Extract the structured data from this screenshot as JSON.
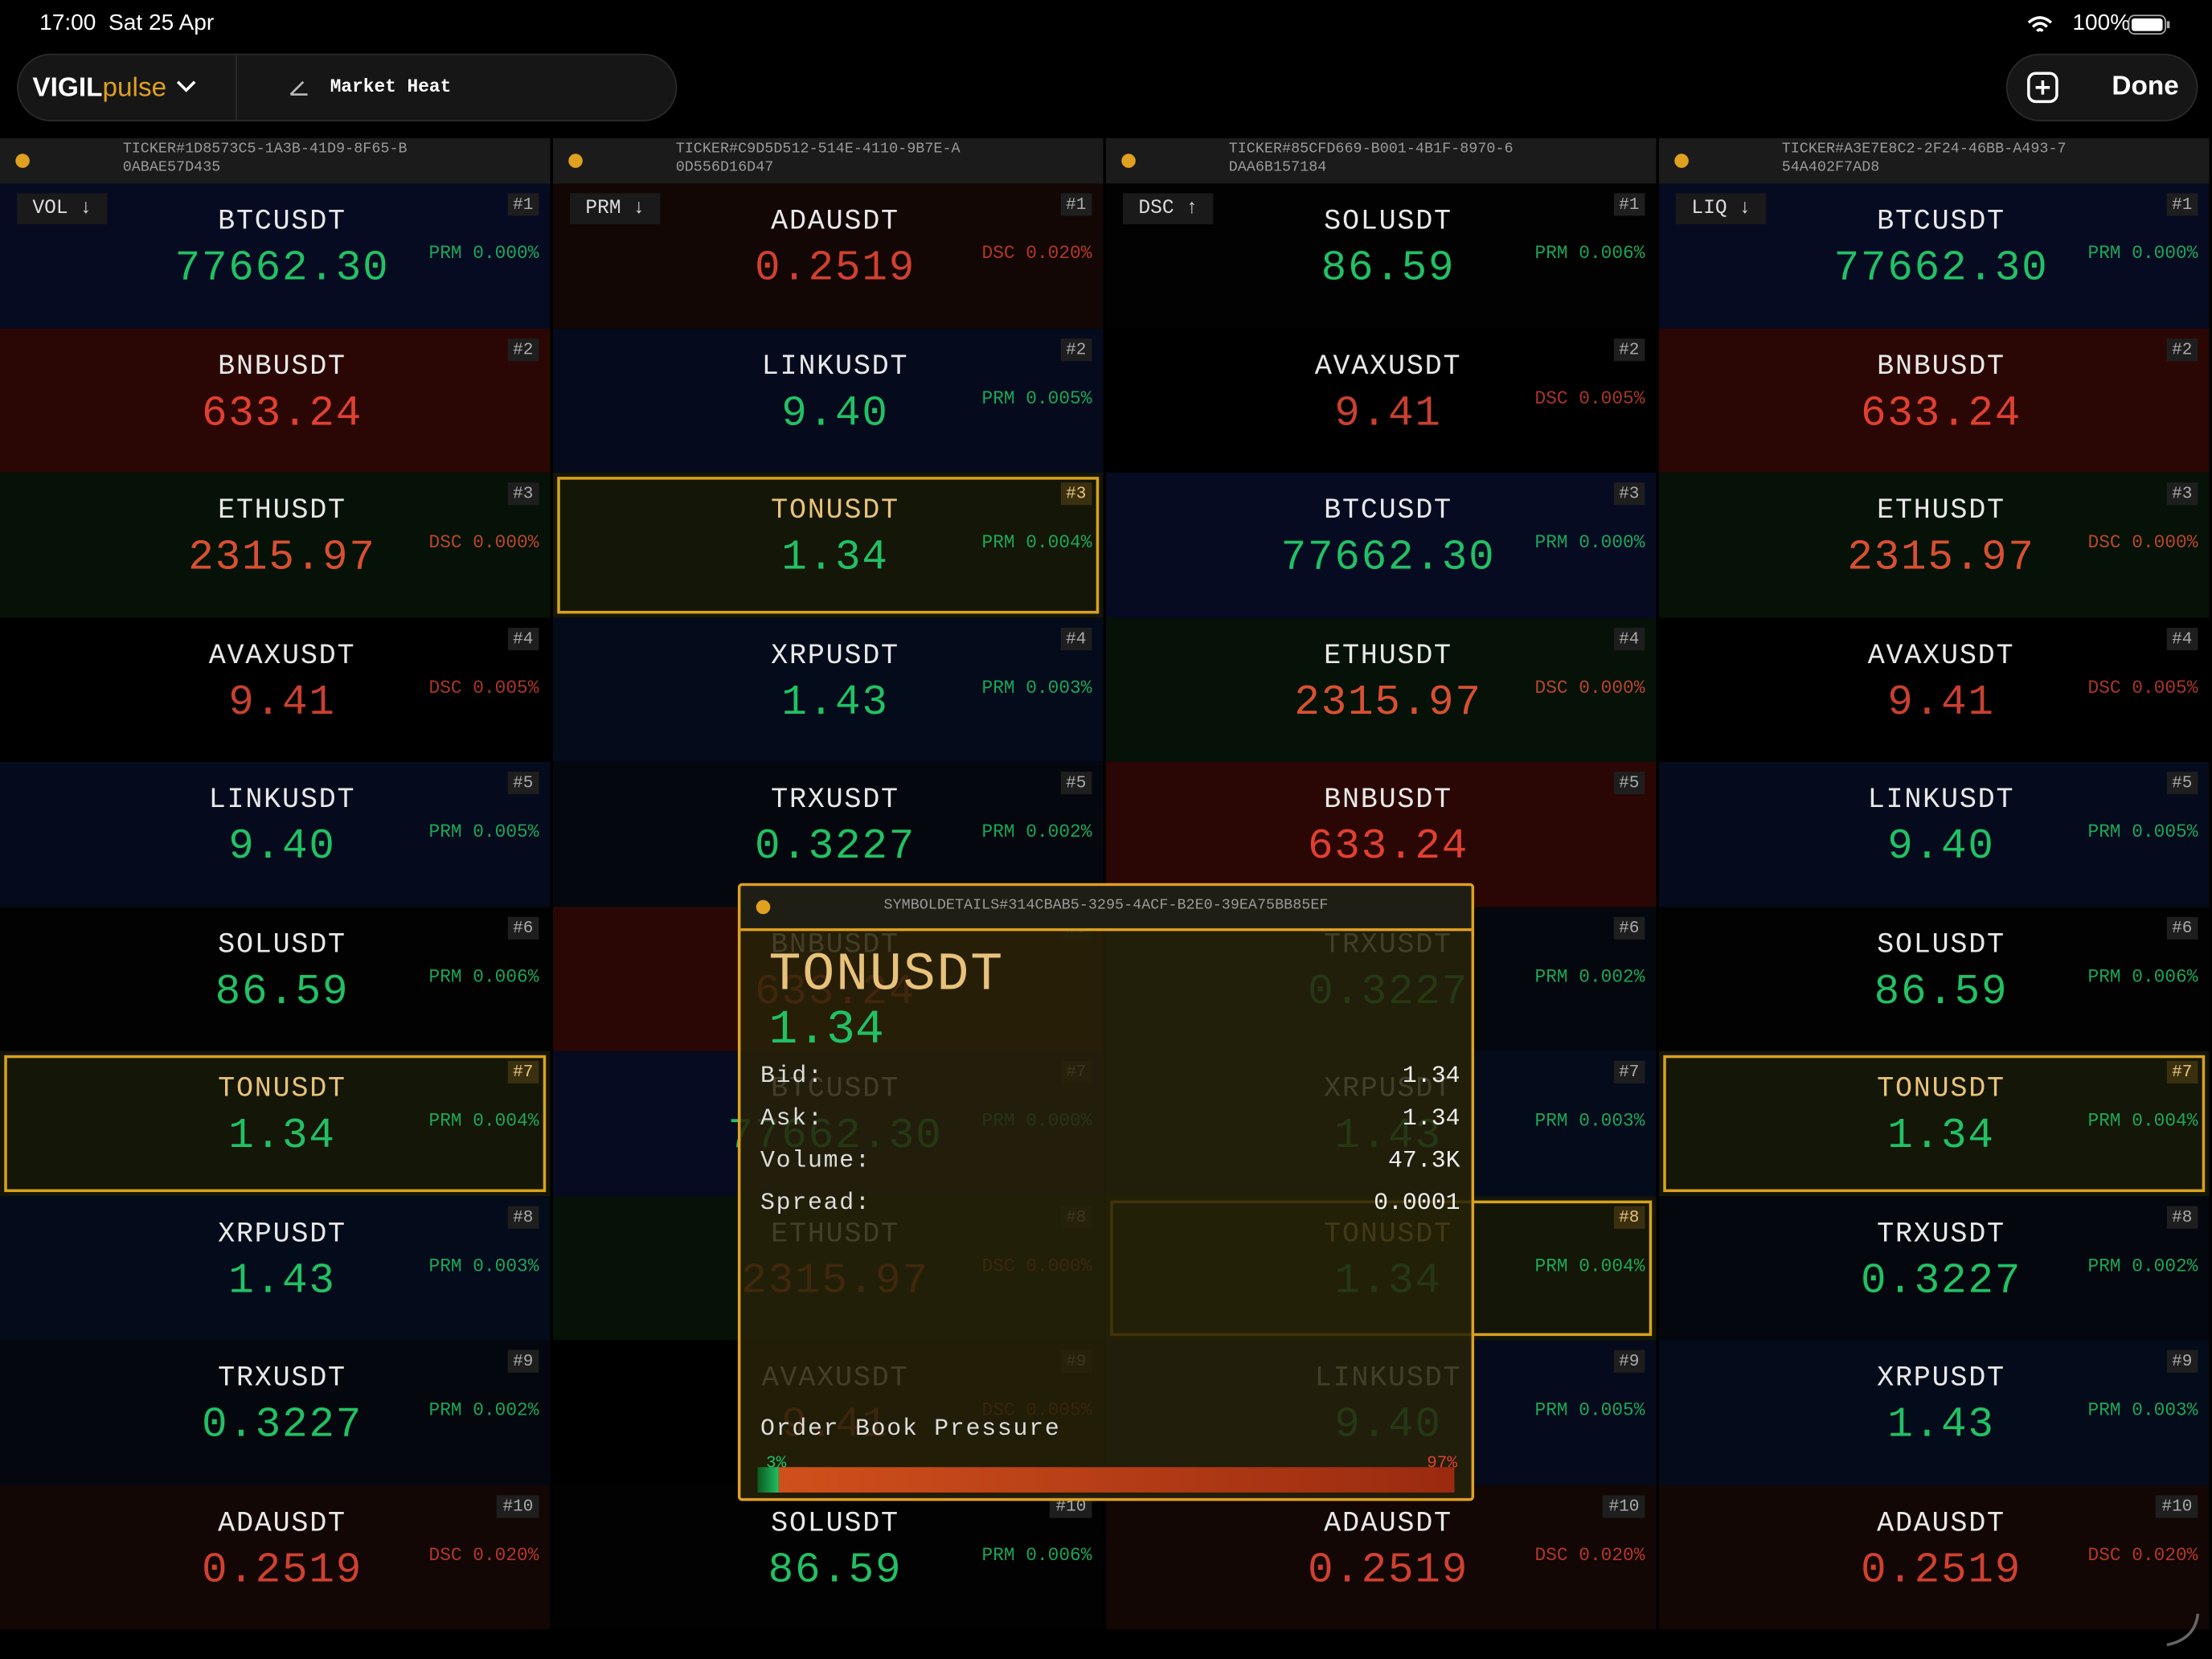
{
  "status": {
    "time": "17:00",
    "date": "Sat 25 Apr",
    "battery": "100%"
  },
  "toolbar": {
    "brand": "VIGIL",
    "brand_suffix": "pulse",
    "title": "Market Heat",
    "done": "Done"
  },
  "panels": [
    {
      "id": "TICKER#1D8573C5-1A3B-41D9-8F65-B0ABAE57D435",
      "sort": "VOL ↓",
      "rows": [
        {
          "rank": "#1",
          "symbol": "BTCUSDT",
          "price": "77662.30",
          "tag": "PRM 0.000%",
          "bg": "#070b22",
          "color": "#22c064"
        },
        {
          "rank": "#2",
          "symbol": "BNBUSDT",
          "price": "633.24",
          "bg": "#2a0705",
          "color": "#e04030"
        },
        {
          "rank": "#3",
          "symbol": "ETHUSDT",
          "price": "2315.97",
          "tag": "DSC 0.000%",
          "bg": "#061208",
          "color": "#d85030"
        },
        {
          "rank": "#4",
          "symbol": "AVAXUSDT",
          "price": "9.41",
          "tag": "DSC 0.005%",
          "bg": "#000000",
          "color": "#c84030"
        },
        {
          "rank": "#5",
          "symbol": "LINKUSDT",
          "price": "9.40",
          "tag": "PRM 0.005%",
          "bg": "#050b1c",
          "color": "#22c064"
        },
        {
          "rank": "#6",
          "symbol": "SOLUSDT",
          "price": "86.59",
          "tag": "PRM 0.006%",
          "bg": "#020202",
          "color": "#22c064"
        },
        {
          "rank": "#7",
          "symbol": "TONUSDT",
          "price": "1.34",
          "tag": "PRM 0.004%",
          "bg": "#141608",
          "color": "#22c064",
          "highlight": true
        },
        {
          "rank": "#8",
          "symbol": "XRPUSDT",
          "price": "1.43",
          "tag": "PRM 0.003%",
          "bg": "#040b1a",
          "color": "#22c064"
        },
        {
          "rank": "#9",
          "symbol": "TRXUSDT",
          "price": "0.3227",
          "tag": "PRM 0.002%",
          "bg": "#04080e",
          "color": "#22c064"
        },
        {
          "rank": "#10",
          "symbol": "ADAUSDT",
          "price": "0.2519",
          "tag": "DSC 0.020%",
          "bg": "#120705",
          "color": "#d04030"
        }
      ]
    },
    {
      "id": "TICKER#C9D5D512-514E-4110-9B7E-A0D556D16D47",
      "sort": "PRM ↓",
      "rows": [
        {
          "rank": "#1",
          "symbol": "ADAUSDT",
          "price": "0.2519",
          "tag": "DSC 0.020%",
          "bg": "#120705",
          "color": "#d04030"
        },
        {
          "rank": "#2",
          "symbol": "LINKUSDT",
          "price": "9.40",
          "tag": "PRM 0.005%",
          "bg": "#050b1c",
          "color": "#22c064"
        },
        {
          "rank": "#3",
          "symbol": "TONUSDT",
          "price": "1.34",
          "tag": "PRM 0.004%",
          "bg": "#141608",
          "color": "#22c064",
          "highlight": true
        },
        {
          "rank": "#4",
          "symbol": "XRPUSDT",
          "price": "1.43",
          "tag": "PRM 0.003%",
          "bg": "#040b1a",
          "color": "#22c064"
        },
        {
          "rank": "#5",
          "symbol": "TRXUSDT",
          "price": "0.3227",
          "tag": "PRM 0.002%",
          "bg": "#04080e",
          "color": "#22c064"
        },
        {
          "rank": "#6",
          "symbol": "BNBUSDT",
          "price": "633.24",
          "bg": "#2a0705",
          "color": "#e04030"
        },
        {
          "rank": "#7",
          "symbol": "BTCUSDT",
          "price": "77662.30",
          "tag": "PRM 0.000%",
          "bg": "#070b22",
          "color": "#22c064"
        },
        {
          "rank": "#8",
          "symbol": "ETHUSDT",
          "price": "2315.97",
          "tag": "DSC 0.000%",
          "bg": "#061208",
          "color": "#d85030"
        },
        {
          "rank": "#9",
          "symbol": "AVAXUSDT",
          "price": "9.41",
          "tag": "DSC 0.005%",
          "bg": "#000000",
          "color": "#c84030"
        },
        {
          "rank": "#10",
          "symbol": "SOLUSDT",
          "price": "86.59",
          "tag": "PRM 0.006%",
          "bg": "#020202",
          "color": "#22c064"
        }
      ]
    },
    {
      "id": "TICKER#85CFD669-B001-4B1F-8970-6DAA6B157184",
      "sort": "DSC ↑",
      "rows": [
        {
          "rank": "#1",
          "symbol": "SOLUSDT",
          "price": "86.59",
          "tag": "PRM 0.006%",
          "bg": "#020202",
          "color": "#22c064"
        },
        {
          "rank": "#2",
          "symbol": "AVAXUSDT",
          "price": "9.41",
          "tag": "DSC 0.005%",
          "bg": "#000000",
          "color": "#c84030"
        },
        {
          "rank": "#3",
          "symbol": "BTCUSDT",
          "price": "77662.30",
          "tag": "PRM 0.000%",
          "bg": "#070b22",
          "color": "#22c064"
        },
        {
          "rank": "#4",
          "symbol": "ETHUSDT",
          "price": "2315.97",
          "tag": "DSC 0.000%",
          "bg": "#061208",
          "color": "#d85030"
        },
        {
          "rank": "#5",
          "symbol": "BNBUSDT",
          "price": "633.24",
          "bg": "#2a0705",
          "color": "#e04030"
        },
        {
          "rank": "#6",
          "symbol": "TRXUSDT",
          "price": "0.3227",
          "tag": "PRM 0.002%",
          "bg": "#04080e",
          "color": "#22c064"
        },
        {
          "rank": "#7",
          "symbol": "XRPUSDT",
          "price": "1.43",
          "tag": "PRM 0.003%",
          "bg": "#040b1a",
          "color": "#22c064"
        },
        {
          "rank": "#8",
          "symbol": "TONUSDT",
          "price": "1.34",
          "tag": "PRM 0.004%",
          "bg": "#141608",
          "color": "#22c064",
          "highlight": true
        },
        {
          "rank": "#9",
          "symbol": "LINKUSDT",
          "price": "9.40",
          "tag": "PRM 0.005%",
          "bg": "#050b1c",
          "color": "#22c064"
        },
        {
          "rank": "#10",
          "symbol": "ADAUSDT",
          "price": "0.2519",
          "tag": "DSC 0.020%",
          "bg": "#120705",
          "color": "#d04030"
        }
      ]
    },
    {
      "id": "TICKER#A3E7E8C2-2F24-46BB-A493-754A402F7AD8",
      "sort": "LIQ ↓",
      "rows": [
        {
          "rank": "#1",
          "symbol": "BTCUSDT",
          "price": "77662.30",
          "tag": "PRM 0.000%",
          "bg": "#070b22",
          "color": "#22c064"
        },
        {
          "rank": "#2",
          "symbol": "BNBUSDT",
          "price": "633.24",
          "bg": "#2a0705",
          "color": "#e04030"
        },
        {
          "rank": "#3",
          "symbol": "ETHUSDT",
          "price": "2315.97",
          "tag": "DSC 0.000%",
          "bg": "#061208",
          "color": "#d85030"
        },
        {
          "rank": "#4",
          "symbol": "AVAXUSDT",
          "price": "9.41",
          "tag": "DSC 0.005%",
          "bg": "#000000",
          "color": "#c84030"
        },
        {
          "rank": "#5",
          "symbol": "LINKUSDT",
          "price": "9.40",
          "tag": "PRM 0.005%",
          "bg": "#050b1c",
          "color": "#22c064"
        },
        {
          "rank": "#6",
          "symbol": "SOLUSDT",
          "price": "86.59",
          "tag": "PRM 0.006%",
          "bg": "#020202",
          "color": "#22c064"
        },
        {
          "rank": "#7",
          "symbol": "TONUSDT",
          "price": "1.34",
          "tag": "PRM 0.004%",
          "bg": "#141608",
          "color": "#22c064",
          "highlight": true
        },
        {
          "rank": "#8",
          "symbol": "TRXUSDT",
          "price": "0.3227",
          "tag": "PRM 0.002%",
          "bg": "#04080e",
          "color": "#22c064"
        },
        {
          "rank": "#9",
          "symbol": "XRPUSDT",
          "price": "1.43",
          "tag": "PRM 0.003%",
          "bg": "#040b1a",
          "color": "#22c064"
        },
        {
          "rank": "#10",
          "symbol": "ADAUSDT",
          "price": "0.2519",
          "tag": "DSC 0.020%",
          "bg": "#120705",
          "color": "#d04030"
        }
      ]
    }
  ],
  "popup": {
    "id": "SYMBOLDETAILS#314CBAB5-3295-4ACF-B2E0-39EA75BB85EF",
    "symbol": "TONUSDT",
    "price": "1.34",
    "fields": [
      {
        "label": "Bid:",
        "value": "1.34"
      },
      {
        "label": "Ask:",
        "value": "1.34"
      },
      {
        "label": "Volume:",
        "value": "47.3K"
      },
      {
        "label": "Spread:",
        "value": "0.0001"
      }
    ],
    "pressure": {
      "title": "Order Book Pressure",
      "bid": {
        "value": 3,
        "label": "3%"
      },
      "ask": {
        "value": 97,
        "label": "97%"
      }
    }
  }
}
